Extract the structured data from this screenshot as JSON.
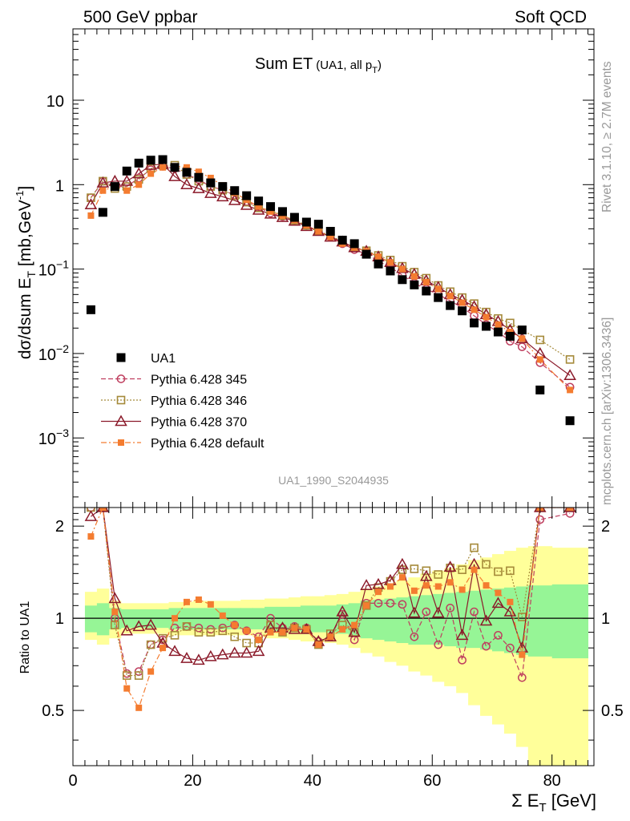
{
  "header": {
    "left": "500 GeV ppbar",
    "right": "Soft QCD"
  },
  "side_labels": {
    "rivet": "Rivet 3.1.10, ≥ 2.7M events",
    "mcplots": "mcplots.cern.ch [arXiv:1306.3436]"
  },
  "chart_data": {
    "type": "scatter",
    "title": "Sum ET",
    "title_note": "(UA1, all p",
    "title_note_sub": "T",
    "title_note_close": ")",
    "analysis_id": "UA1_1990_S2044935",
    "ylabel_main": "dσ/dsum E",
    "ylabel_main_sub": "T",
    "ylabel_main_units": " [mb,GeV",
    "ylabel_main_sup": "-1",
    "ylabel_main_close": "]",
    "ylabel_ratio": "Ratio to UA1",
    "xlabel": "Σ E",
    "xlabel_sub": "T",
    "xlabel_units": " [GeV]",
    "xlim": [
      0,
      87
    ],
    "main_ylim": [
      0.00015,
      70
    ],
    "ratio_ylim": [
      0.33,
      2.3
    ],
    "x_ticks": [
      "0",
      "20",
      "40",
      "60",
      "80"
    ],
    "main_y_ticks": [
      {
        "base": "10",
        "exp": ""
      },
      {
        "base": "1",
        "exp": ""
      },
      {
        "base": "10",
        "exp": "−1"
      },
      {
        "base": "10",
        "exp": "−2"
      },
      {
        "base": "10",
        "exp": "−3"
      }
    ],
    "ratio_y_ticks": [
      "2",
      "1",
      "0.5"
    ],
    "x": [
      3,
      5,
      7,
      9,
      11,
      13,
      15,
      17,
      19,
      21,
      23,
      25,
      27,
      29,
      31,
      33,
      35,
      37,
      39,
      41,
      43,
      45,
      47,
      49,
      51,
      53,
      55,
      57,
      59,
      61,
      63,
      65,
      67,
      69,
      71,
      73,
      75,
      78,
      83
    ],
    "series": [
      {
        "name": "UA1",
        "color": "#000000",
        "marker": "square",
        "line": "none",
        "values": [
          0.033,
          0.47,
          0.95,
          1.45,
          1.8,
          1.95,
          1.98,
          1.6,
          1.4,
          1.22,
          1.05,
          0.95,
          0.85,
          0.74,
          0.64,
          0.55,
          0.48,
          0.41,
          0.36,
          0.34,
          0.28,
          0.22,
          0.2,
          0.15,
          0.115,
          0.095,
          0.075,
          0.065,
          0.055,
          0.046,
          0.037,
          0.032,
          0.023,
          0.021,
          0.018,
          0.016,
          0.019,
          0.0037,
          0.0016
        ]
      },
      {
        "name": "Pythia 6.428 345",
        "color": "#bf3f5f",
        "marker": "circle",
        "line": "dashed",
        "values": [
          0.7,
          1.1,
          0.95,
          0.95,
          1.2,
          1.5,
          1.65,
          1.55,
          1.32,
          1.15,
          0.95,
          0.87,
          0.75,
          0.63,
          0.54,
          0.46,
          0.42,
          0.38,
          0.33,
          0.28,
          0.24,
          0.2,
          0.17,
          0.15,
          0.125,
          0.105,
          0.085,
          0.068,
          0.058,
          0.05,
          0.042,
          0.035,
          0.028,
          0.022,
          0.018,
          0.014,
          0.012,
          0.0078,
          0.004
        ]
      },
      {
        "name": "Pythia 6.428 346",
        "color": "#a58a3a",
        "marker": "square-open",
        "line": "dotted",
        "values": [
          0.7,
          1.1,
          0.9,
          0.95,
          1.15,
          1.55,
          1.7,
          1.7,
          1.32,
          1.1,
          0.95,
          0.86,
          0.74,
          0.62,
          0.53,
          0.5,
          0.43,
          0.38,
          0.33,
          0.28,
          0.25,
          0.21,
          0.18,
          0.165,
          0.145,
          0.128,
          0.108,
          0.092,
          0.078,
          0.064,
          0.054,
          0.046,
          0.039,
          0.031,
          0.026,
          0.023,
          0.019,
          0.0145,
          0.0085
        ]
      },
      {
        "name": "Pythia 6.428 370",
        "color": "#8b1a2a",
        "marker": "triangle",
        "line": "solid",
        "values": [
          0.58,
          1.05,
          1.1,
          1.1,
          1.35,
          1.7,
          1.75,
          1.25,
          1.0,
          0.9,
          0.79,
          0.72,
          0.65,
          0.57,
          0.5,
          0.45,
          0.41,
          0.37,
          0.32,
          0.28,
          0.24,
          0.21,
          0.18,
          0.163,
          0.14,
          0.12,
          0.102,
          0.087,
          0.073,
          0.061,
          0.05,
          0.043,
          0.036,
          0.029,
          0.024,
          0.019,
          0.015,
          0.01,
          0.0055
        ]
      },
      {
        "name": "Pythia 6.428 default",
        "color": "#f47c30",
        "marker": "square-small",
        "line": "dashdot",
        "values": [
          0.43,
          0.85,
          0.95,
          0.85,
          1.0,
          1.35,
          1.6,
          1.65,
          1.6,
          1.42,
          1.2,
          0.98,
          0.8,
          0.66,
          0.55,
          0.48,
          0.43,
          0.38,
          0.33,
          0.28,
          0.24,
          0.2,
          0.18,
          0.163,
          0.14,
          0.12,
          0.1,
          0.082,
          0.07,
          0.058,
          0.048,
          0.04,
          0.033,
          0.027,
          0.022,
          0.018,
          0.015,
          0.0085,
          0.0037
        ]
      }
    ],
    "ratio_series": [
      {
        "name": "Pythia 6.428 345",
        "values": [
          2.3,
          2.3,
          1.0,
          0.66,
          0.67,
          0.82,
          0.85,
          0.93,
          0.94,
          0.93,
          0.92,
          0.93,
          0.95,
          0.91,
          0.87,
          1.0,
          0.93,
          0.94,
          0.93,
          0.84,
          0.87,
          1.03,
          0.85,
          1.12,
          1.12,
          1.12,
          1.11,
          0.87,
          1.05,
          0.82,
          1.08,
          0.73,
          1.05,
          0.81,
          0.88,
          0.8,
          0.64,
          2.1,
          2.2
        ]
      },
      {
        "name": "Pythia 6.428 346",
        "values": [
          2.3,
          2.3,
          0.95,
          0.65,
          0.65,
          0.82,
          0.86,
          0.88,
          0.94,
          0.9,
          0.9,
          0.91,
          0.87,
          0.83,
          0.83,
          0.95,
          0.9,
          0.93,
          0.92,
          0.82,
          0.89,
          0.95,
          0.9,
          1.1,
          1.26,
          1.32,
          1.44,
          1.45,
          1.43,
          1.39,
          1.46,
          1.44,
          1.7,
          1.5,
          1.42,
          1.43,
          1.01,
          2.3,
          2.3
        ]
      },
      {
        "name": "Pythia 6.428 370",
        "values": [
          2.15,
          2.3,
          1.16,
          0.91,
          0.94,
          0.95,
          0.83,
          0.78,
          0.74,
          0.73,
          0.75,
          0.76,
          0.77,
          0.77,
          0.78,
          0.93,
          0.93,
          0.92,
          0.92,
          0.84,
          0.87,
          1.05,
          0.9,
          1.28,
          1.29,
          1.33,
          1.5,
          1.04,
          1.37,
          1.04,
          1.47,
          0.88,
          1.5,
          0.98,
          1.12,
          1.05,
          0.8,
          2.3,
          2.3
        ]
      },
      {
        "name": "Pythia 6.428 default",
        "values": [
          1.85,
          2.3,
          1.05,
          0.59,
          0.51,
          0.67,
          0.8,
          1.0,
          1.13,
          1.15,
          1.11,
          1.02,
          0.95,
          0.91,
          0.85,
          0.9,
          0.9,
          0.93,
          0.92,
          0.82,
          0.87,
          0.92,
          0.95,
          1.1,
          1.22,
          1.27,
          1.36,
          1.23,
          1.28,
          1.27,
          1.31,
          1.24,
          1.44,
          1.28,
          1.21,
          1.13,
          0.76,
          2.3,
          2.3
        ]
      }
    ],
    "band_edges": [
      2,
      4,
      6,
      8,
      10,
      12,
      14,
      16,
      18,
      20,
      22,
      24,
      26,
      28,
      30,
      32,
      34,
      36,
      38,
      40,
      42,
      44,
      46,
      48,
      50,
      52,
      54,
      56,
      58,
      60,
      62,
      64,
      66,
      68,
      70,
      72,
      74,
      76,
      80,
      86
    ],
    "band_inner_lo": [
      0.9,
      0.88,
      0.92,
      0.93,
      0.93,
      0.93,
      0.93,
      0.92,
      0.92,
      0.92,
      0.92,
      0.92,
      0.92,
      0.92,
      0.92,
      0.91,
      0.91,
      0.91,
      0.9,
      0.9,
      0.9,
      0.89,
      0.88,
      0.86,
      0.85,
      0.84,
      0.83,
      0.82,
      0.82,
      0.82,
      0.81,
      0.8,
      0.8,
      0.79,
      0.78,
      0.77,
      0.76,
      0.75,
      0.74
    ],
    "band_inner_hi": [
      1.1,
      1.12,
      1.08,
      1.07,
      1.07,
      1.07,
      1.07,
      1.08,
      1.08,
      1.08,
      1.08,
      1.08,
      1.08,
      1.08,
      1.08,
      1.09,
      1.09,
      1.09,
      1.1,
      1.1,
      1.1,
      1.11,
      1.12,
      1.14,
      1.15,
      1.16,
      1.17,
      1.18,
      1.19,
      1.2,
      1.21,
      1.22,
      1.23,
      1.24,
      1.25,
      1.26,
      1.27,
      1.28,
      1.29
    ],
    "band_outer_lo": [
      0.85,
      0.82,
      0.86,
      0.89,
      0.89,
      0.89,
      0.89,
      0.88,
      0.88,
      0.88,
      0.88,
      0.88,
      0.88,
      0.88,
      0.87,
      0.86,
      0.86,
      0.85,
      0.84,
      0.84,
      0.83,
      0.82,
      0.8,
      0.77,
      0.75,
      0.72,
      0.7,
      0.67,
      0.65,
      0.62,
      0.6,
      0.57,
      0.52,
      0.48,
      0.45,
      0.42,
      0.38,
      0.33,
      0.33
    ],
    "band_outer_hi": [
      1.22,
      1.25,
      1.14,
      1.12,
      1.12,
      1.12,
      1.12,
      1.13,
      1.13,
      1.14,
      1.14,
      1.14,
      1.14,
      1.15,
      1.15,
      1.16,
      1.16,
      1.17,
      1.18,
      1.18,
      1.19,
      1.2,
      1.22,
      1.25,
      1.27,
      1.3,
      1.33,
      1.36,
      1.4,
      1.43,
      1.46,
      1.5,
      1.55,
      1.58,
      1.62,
      1.66,
      1.7,
      1.72,
      1.7
    ]
  }
}
